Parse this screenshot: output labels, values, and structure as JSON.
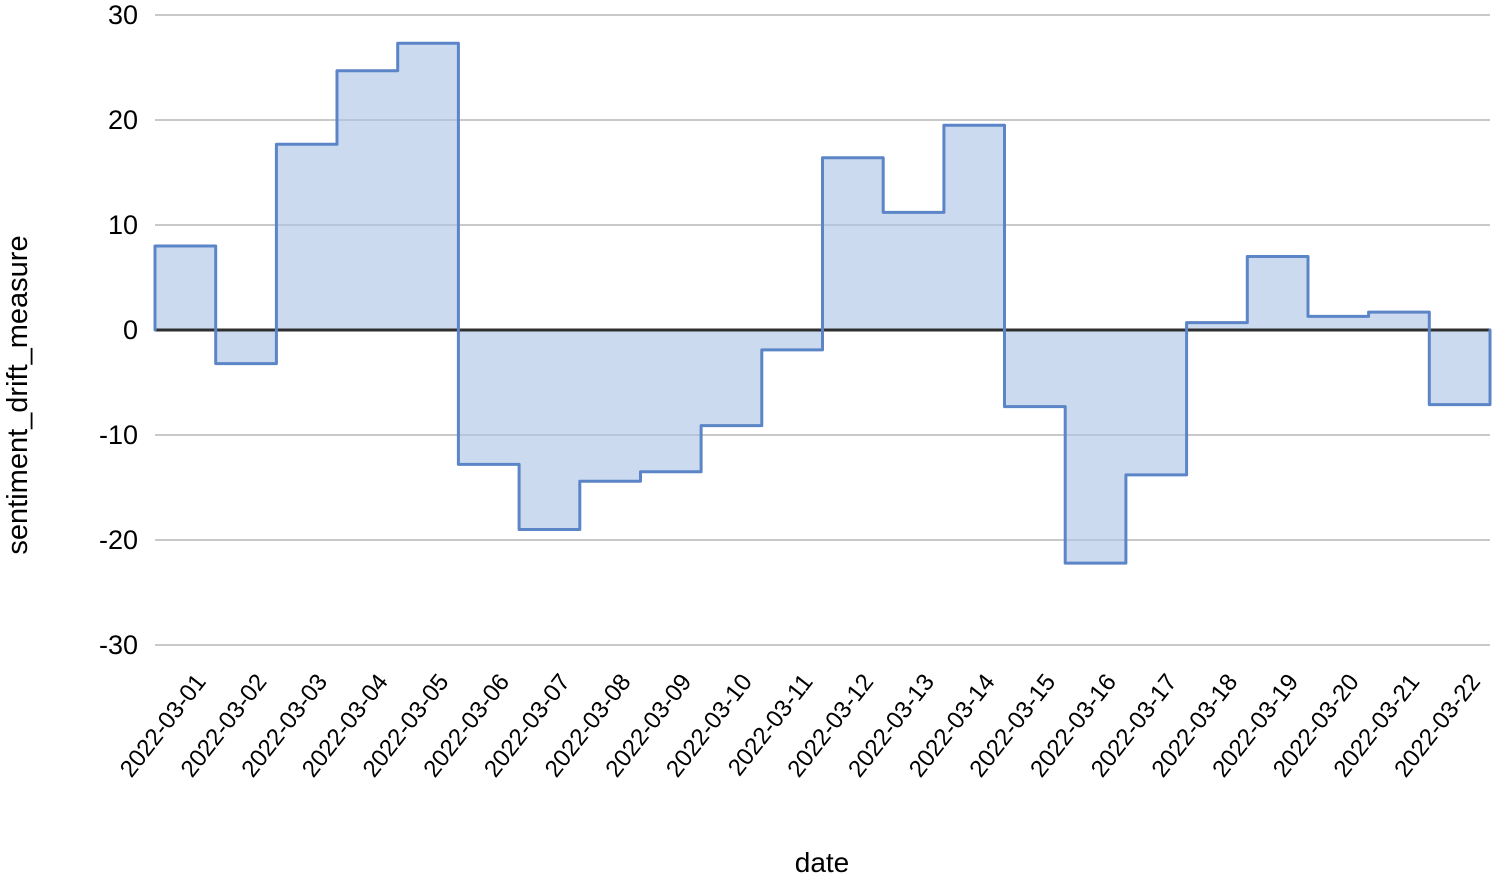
{
  "chart_data": {
    "type": "area",
    "subtype": "step-area-post",
    "title": "",
    "xlabel": "date",
    "ylabel": "sentiment_drift_measure",
    "x": [
      "2022-03-01",
      "2022-03-02",
      "2022-03-03",
      "2022-03-04",
      "2022-03-05",
      "2022-03-06",
      "2022-03-07",
      "2022-03-08",
      "2022-03-09",
      "2022-03-10",
      "2022-03-11",
      "2022-03-12",
      "2022-03-13",
      "2022-03-14",
      "2022-03-15",
      "2022-03-16",
      "2022-03-17",
      "2022-03-18",
      "2022-03-19",
      "2022-03-20",
      "2022-03-21",
      "2022-03-22"
    ],
    "values": [
      8.0,
      -3.2,
      17.7,
      24.7,
      27.3,
      -12.8,
      -19.0,
      -14.4,
      -13.5,
      -9.1,
      -1.9,
      16.4,
      11.2,
      19.5,
      -7.3,
      -22.2,
      -13.8,
      0.7,
      7.0,
      1.3,
      1.7,
      -7.1
    ],
    "ylim": [
      -30,
      30
    ],
    "yticks": [
      30,
      20,
      10,
      0,
      -10,
      -20,
      -30
    ],
    "grid": true,
    "legend": "none",
    "baseline": 0,
    "colors": {
      "fill": "#adc4e7",
      "fill_opacity": 0.62,
      "stroke": "#5b85c7",
      "gridline": "#c9c9c9",
      "zero_line": "#2f2f2f",
      "text": "#000000",
      "background": "#ffffff"
    }
  }
}
